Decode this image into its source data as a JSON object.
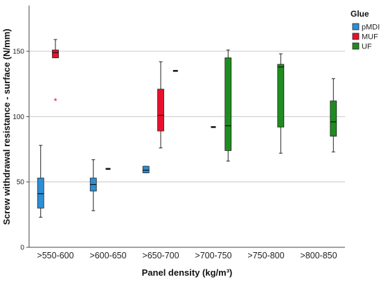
{
  "chart_data": {
    "type": "box",
    "xlabel": "Panel density (kg/m³)",
    "ylabel": "Screw withdrawal resistance - surface (N/mm)",
    "ylim": [
      0,
      185
    ],
    "yticks": [
      0,
      50,
      100,
      150
    ],
    "grid": "horizontal",
    "categories": [
      ">550-600",
      ">600-650",
      ">650-700",
      ">700-750",
      ">750-800",
      ">800-850"
    ],
    "legend": {
      "title": "Glue",
      "placement": "top-right",
      "entries": [
        {
          "name": "pMDI",
          "color": "#2d8fd5"
        },
        {
          "name": "MUF",
          "color": "#e8112d"
        },
        {
          "name": "UF",
          "color": "#1f8c1f"
        }
      ]
    },
    "boxes": [
      {
        "category": ">550-600",
        "group": "pMDI",
        "min": 23,
        "q1": 30,
        "median": 41,
        "q3": 53,
        "max": 78
      },
      {
        "category": ">550-600",
        "group": "MUF",
        "min": 145,
        "q1": 145,
        "median": 149,
        "q3": 151,
        "max": 159,
        "outliers": [
          112
        ]
      },
      {
        "category": ">600-650",
        "group": "pMDI",
        "min": 28,
        "q1": 43,
        "median": 48,
        "q3": 53,
        "max": 67
      },
      {
        "category": ">600-650",
        "group": "MUF",
        "min": 60,
        "q1": 60,
        "median": 60,
        "q3": 60,
        "max": 60
      },
      {
        "category": ">650-700",
        "group": "pMDI",
        "min": 57,
        "q1": 57,
        "median": 59,
        "q3": 62,
        "max": 62
      },
      {
        "category": ">650-700",
        "group": "MUF",
        "min": 76,
        "q1": 89,
        "median": 101,
        "q3": 121,
        "max": 142
      },
      {
        "category": ">650-700",
        "group": "UF",
        "min": 135,
        "q1": 135,
        "median": 135,
        "q3": 135,
        "max": 135
      },
      {
        "category": ">700-750",
        "group": "MUF",
        "min": 92,
        "q1": 92,
        "median": 92,
        "q3": 92,
        "max": 92
      },
      {
        "category": ">700-750",
        "group": "UF",
        "min": 66,
        "q1": 74,
        "median": 93,
        "q3": 145,
        "max": 151
      },
      {
        "category": ">750-800",
        "group": "UF",
        "min": 72,
        "q1": 92,
        "median": 138,
        "q3": 140,
        "max": 148
      },
      {
        "category": ">800-850",
        "group": "UF",
        "min": 73,
        "q1": 85,
        "median": 96,
        "q3": 112,
        "max": 129
      }
    ],
    "outlier_symbol": "*"
  }
}
